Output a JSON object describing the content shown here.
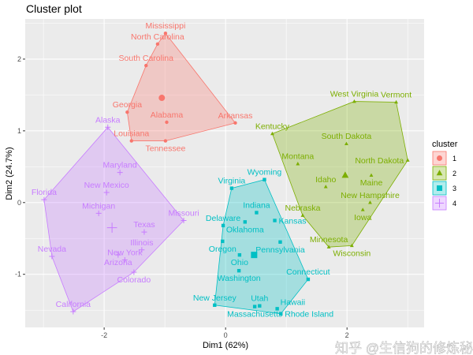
{
  "chart_data": {
    "type": "scatter",
    "title": "Cluster plot",
    "xlabel": "Dim1 (62%)",
    "ylabel": "Dim2 (24.7%)",
    "xlim": [
      -3.3,
      3.27
    ],
    "ylim": [
      -1.74,
      2.56
    ],
    "x_ticks": [
      "-2",
      "0",
      "2"
    ],
    "y_ticks": [
      "-1",
      "0",
      "1",
      "2"
    ],
    "grid": true,
    "legend": {
      "title": "cluster",
      "position": "right",
      "entries": [
        "1",
        "2",
        "3",
        "4"
      ]
    },
    "series": [
      {
        "name": "1",
        "color": "#F8766D",
        "shape": "circle",
        "centroid": [
          -1.05,
          1.46
        ],
        "points": [
          {
            "label": "Mississippi",
            "x": -0.99,
            "y": 2.36
          },
          {
            "label": "North Carolina",
            "x": -1.12,
            "y": 2.21
          },
          {
            "label": "South Carolina",
            "x": -1.31,
            "y": 1.91
          },
          {
            "label": "Georgia",
            "x": -1.62,
            "y": 1.26
          },
          {
            "label": "Alabama",
            "x": -0.97,
            "y": 1.12
          },
          {
            "label": "Arkansas",
            "x": 0.16,
            "y": 1.11
          },
          {
            "label": "Louisiana",
            "x": -1.55,
            "y": 0.86
          },
          {
            "label": "Tennessee",
            "x": -0.99,
            "y": 0.86
          }
        ]
      },
      {
        "name": "2",
        "color": "#7CAE00",
        "shape": "triangle",
        "centroid": [
          1.97,
          0.38
        ],
        "points": [
          {
            "label": "West Virginia",
            "x": 2.12,
            "y": 1.41
          },
          {
            "label": "Vermont",
            "x": 2.81,
            "y": 1.4
          },
          {
            "label": "Kentucky",
            "x": 0.77,
            "y": 0.96
          },
          {
            "label": "South Dakota",
            "x": 1.99,
            "y": 0.82
          },
          {
            "label": "North Dakota",
            "x": 3.0,
            "y": 0.59
          },
          {
            "label": "Montana",
            "x": 1.19,
            "y": 0.54
          },
          {
            "label": "Maine",
            "x": 2.4,
            "y": 0.38
          },
          {
            "label": "Idaho",
            "x": 1.65,
            "y": 0.22
          },
          {
            "label": "New Hampshire",
            "x": 2.38,
            "y": 0.0
          },
          {
            "label": "Iowa",
            "x": 2.26,
            "y": -0.1
          },
          {
            "label": "Nebraska",
            "x": 1.27,
            "y": -0.18
          },
          {
            "label": "Minnesota",
            "x": 1.7,
            "y": -0.62
          },
          {
            "label": "Wisconsin",
            "x": 2.08,
            "y": -0.6
          }
        ]
      },
      {
        "name": "3",
        "color": "#00BFC4",
        "shape": "square",
        "centroid": [
          0.47,
          -0.73
        ],
        "points": [
          {
            "label": "Virginia",
            "x": 0.1,
            "y": 0.2
          },
          {
            "label": "Wyoming",
            "x": 0.64,
            "y": 0.32
          },
          {
            "label": "Indiana",
            "x": 0.51,
            "y": -0.14
          },
          {
            "label": "Oklahoma",
            "x": 0.32,
            "y": -0.27
          },
          {
            "label": "Kansas",
            "x": 0.81,
            "y": -0.25
          },
          {
            "label": "Delaware",
            "x": -0.04,
            "y": -0.32
          },
          {
            "label": "Oregon",
            "x": -0.05,
            "y": -0.54
          },
          {
            "label": "Pennsylvania",
            "x": 0.9,
            "y": -0.55
          },
          {
            "label": "Ohio",
            "x": 0.23,
            "y": -0.73
          },
          {
            "label": "Washington",
            "x": 0.22,
            "y": -0.95
          },
          {
            "label": "Connecticut",
            "x": 1.36,
            "y": -1.07
          },
          {
            "label": "New Jersey",
            "x": -0.18,
            "y": -1.43
          },
          {
            "label": "Massachusetts",
            "x": 0.48,
            "y": -1.45
          },
          {
            "label": "Utah",
            "x": 0.56,
            "y": -1.44
          },
          {
            "label": "Hawaii",
            "x": 0.85,
            "y": -1.48
          },
          {
            "label": "Rhode Island",
            "x": 0.91,
            "y": -1.55
          }
        ]
      },
      {
        "name": "4",
        "color": "#C77CFF",
        "shape": "plus",
        "centroid": [
          -1.87,
          -0.35
        ],
        "points": [
          {
            "label": "Alaska",
            "x": -1.94,
            "y": 1.05
          },
          {
            "label": "Maryland",
            "x": -1.74,
            "y": 0.42
          },
          {
            "label": "New Mexico",
            "x": -1.96,
            "y": 0.14
          },
          {
            "label": "Florida",
            "x": -2.99,
            "y": 0.04
          },
          {
            "label": "Michigan",
            "x": -2.09,
            "y": -0.15
          },
          {
            "label": "Missouri",
            "x": -0.69,
            "y": -0.25
          },
          {
            "label": "Texas",
            "x": -1.34,
            "y": -0.41
          },
          {
            "label": "Illinois",
            "x": -1.38,
            "y": -0.66
          },
          {
            "label": "Arizona",
            "x": -1.77,
            "y": -0.73
          },
          {
            "label": "New York",
            "x": -1.66,
            "y": -0.8
          },
          {
            "label": "Colorado",
            "x": -1.51,
            "y": -0.97
          },
          {
            "label": "Nevada",
            "x": -2.86,
            "y": -0.75
          },
          {
            "label": "California",
            "x": -2.51,
            "y": -1.52
          }
        ]
      }
    ]
  },
  "watermark": "知乎 @生信狗的修炼秘籍"
}
